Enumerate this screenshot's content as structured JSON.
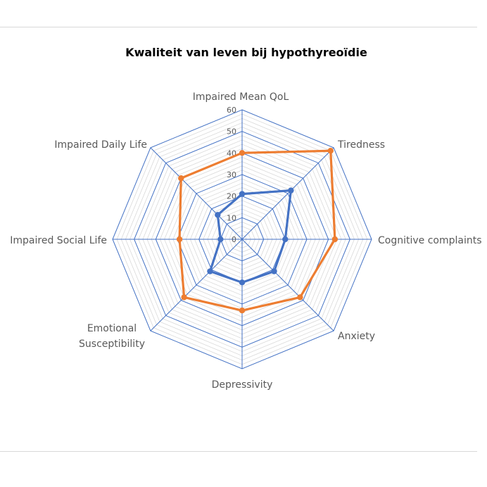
{
  "chart_data": {
    "type": "radar",
    "title": "Kwaliteit van leven bij hypothyreoïdie",
    "categories": [
      "Impaired Mean QoL",
      "Tiredness",
      "Cognitive complaints",
      "Anxiety",
      "Depressivity",
      "Emotional Susceptibility",
      "Impaired Social Life",
      "Impaired Daily Life"
    ],
    "radial_ticks": [
      0,
      10,
      20,
      30,
      40,
      50,
      60
    ],
    "range": [
      0,
      60
    ],
    "minor_step": 2,
    "series": [
      {
        "color": "#4472C4",
        "values": [
          21,
          32,
          20,
          21,
          20,
          21,
          10,
          16
        ]
      },
      {
        "color": "#ED7D31",
        "values": [
          40,
          58,
          43,
          38,
          33,
          38,
          29,
          40
        ]
      }
    ],
    "grid_color": "#4472C4",
    "minor_grid_color": "#d9d9d9"
  }
}
